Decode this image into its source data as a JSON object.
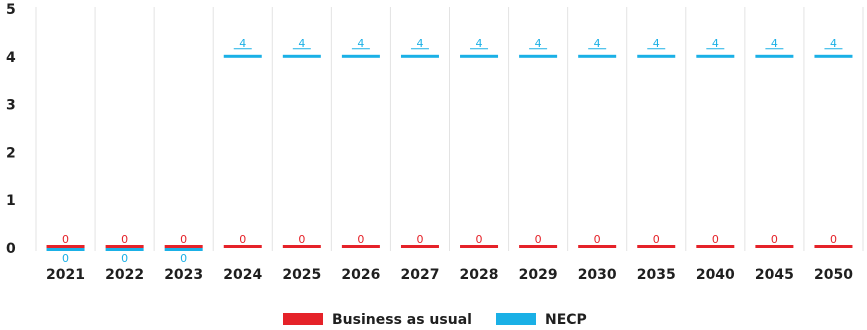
{
  "chart_data": {
    "type": "bar",
    "title": "",
    "xlabel": "",
    "ylabel": "",
    "categories": [
      "2021",
      "2022",
      "2023",
      "2024",
      "2025",
      "2026",
      "2027",
      "2028",
      "2029",
      "2030",
      "2035",
      "2040",
      "2045",
      "2050"
    ],
    "series": [
      {
        "name": "Business as usual",
        "color": "#e52229",
        "values": [
          0,
          0,
          0,
          0,
          0,
          0,
          0,
          0,
          0,
          0,
          0,
          0,
          0,
          0
        ],
        "labels": [
          "0",
          "0",
          "0",
          "0",
          "0",
          "0",
          "0",
          "0",
          "0",
          "0",
          "0",
          "0",
          "0",
          "0"
        ]
      },
      {
        "name": "NECP",
        "color": "#1ab0e6",
        "values": [
          0,
          0,
          0,
          4,
          4,
          4,
          4,
          4,
          4,
          4,
          4,
          4,
          4,
          4
        ],
        "labels": [
          "0",
          "0",
          "0",
          "4",
          "4",
          "4",
          "4",
          "4",
          "4",
          "4",
          "4",
          "4",
          "4",
          "4"
        ]
      }
    ],
    "yticks": [
      "0",
      "1",
      "2",
      "3",
      "4",
      "5"
    ],
    "ylim": [
      0,
      5
    ],
    "grid": "vertical category separators",
    "legend_position": "bottom-center"
  }
}
